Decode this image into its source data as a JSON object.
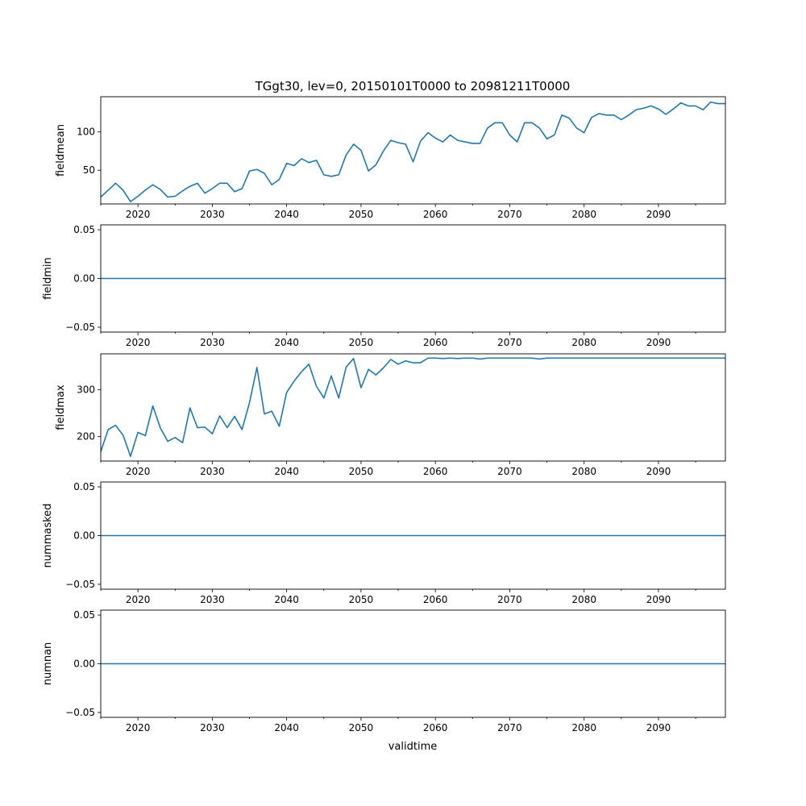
{
  "figure": {
    "title": "TGgt30, lev=0, 20150101T0000 to 20981211T0000",
    "xlabel": "validtime",
    "line_color": "#1f77b4"
  },
  "chart_data": [
    {
      "type": "line",
      "ylabel": "fieldmean",
      "xlim": [
        2015,
        2099
      ],
      "ylim": [
        6,
        146
      ],
      "xticks": [
        2020,
        2030,
        2040,
        2050,
        2060,
        2070,
        2080,
        2090
      ],
      "xtick_labels": [
        "2020",
        "2030",
        "2040",
        "2050",
        "2060",
        "2070",
        "2080",
        "2090"
      ],
      "yticks": [
        50,
        100
      ],
      "ytick_labels": [
        "50",
        "100"
      ],
      "series": [
        {
          "name": "fieldmean",
          "x": [
            2015,
            2016,
            2017,
            2018,
            2019,
            2020,
            2021,
            2022,
            2023,
            2024,
            2025,
            2026,
            2027,
            2028,
            2029,
            2030,
            2031,
            2032,
            2033,
            2034,
            2035,
            2036,
            2037,
            2038,
            2039,
            2040,
            2041,
            2042,
            2043,
            2044,
            2045,
            2046,
            2047,
            2048,
            2049,
            2050,
            2051,
            2052,
            2053,
            2054,
            2055,
            2056,
            2057,
            2058,
            2059,
            2060,
            2061,
            2062,
            2063,
            2064,
            2065,
            2066,
            2067,
            2068,
            2069,
            2070,
            2071,
            2072,
            2073,
            2074,
            2075,
            2076,
            2077,
            2078,
            2079,
            2080,
            2081,
            2082,
            2083,
            2084,
            2085,
            2086,
            2087,
            2088,
            2089,
            2090,
            2091,
            2092,
            2093,
            2094,
            2095,
            2096,
            2097,
            2098,
            2099
          ],
          "values": [
            15,
            24,
            33,
            24,
            9,
            16,
            24,
            31,
            25,
            15,
            16,
            23,
            29,
            33,
            20,
            26,
            33,
            33,
            22,
            26,
            49,
            51,
            46,
            31,
            38,
            59,
            56,
            65,
            60,
            63,
            44,
            42,
            44,
            70,
            84,
            76,
            49,
            57,
            75,
            89,
            86,
            84,
            61,
            88,
            99,
            92,
            87,
            96,
            89,
            87,
            85,
            85,
            105,
            112,
            112,
            96,
            87,
            112,
            112,
            105,
            91,
            96,
            122,
            118,
            105,
            99,
            119,
            124,
            122,
            122,
            116,
            122,
            129,
            131,
            134,
            130,
            123,
            130,
            138,
            134,
            134,
            129,
            139,
            137,
            137
          ]
        }
      ]
    },
    {
      "type": "line",
      "ylabel": "fieldmin",
      "xlim": [
        2015,
        2099
      ],
      "ylim": [
        -0.055,
        0.055
      ],
      "xticks": [
        2020,
        2030,
        2040,
        2050,
        2060,
        2070,
        2080,
        2090
      ],
      "xtick_labels": [
        "2020",
        "2030",
        "2040",
        "2050",
        "2060",
        "2070",
        "2080",
        "2090"
      ],
      "yticks": [
        -0.05,
        0.0,
        0.05
      ],
      "ytick_labels": [
        "−0.05",
        "0.00",
        "0.05"
      ],
      "series": [
        {
          "name": "fieldmin",
          "x": [
            2015,
            2099
          ],
          "values": [
            0,
            0
          ]
        }
      ]
    },
    {
      "type": "line",
      "ylabel": "fieldmax",
      "xlim": [
        2015,
        2099
      ],
      "ylim": [
        148,
        376
      ],
      "xticks": [
        2020,
        2030,
        2040,
        2050,
        2060,
        2070,
        2080,
        2090
      ],
      "xtick_labels": [
        "2020",
        "2030",
        "2040",
        "2050",
        "2060",
        "2070",
        "2080",
        "2090"
      ],
      "yticks": [
        200,
        300
      ],
      "ytick_labels": [
        "200",
        "300"
      ],
      "series": [
        {
          "name": "fieldmax",
          "x": [
            2015,
            2016,
            2017,
            2018,
            2019,
            2020,
            2021,
            2022,
            2023,
            2024,
            2025,
            2026,
            2027,
            2028,
            2029,
            2030,
            2031,
            2032,
            2033,
            2034,
            2035,
            2036,
            2037,
            2038,
            2039,
            2040,
            2041,
            2042,
            2043,
            2044,
            2045,
            2046,
            2047,
            2048,
            2049,
            2050,
            2051,
            2052,
            2053,
            2054,
            2055,
            2056,
            2057,
            2058,
            2059,
            2060,
            2061,
            2062,
            2063,
            2064,
            2065,
            2066,
            2067,
            2068,
            2069,
            2070,
            2071,
            2072,
            2073,
            2074,
            2075,
            2076,
            2077,
            2078,
            2079,
            2080,
            2081,
            2082,
            2083,
            2084,
            2085,
            2086,
            2087,
            2088,
            2089,
            2090,
            2091,
            2092,
            2093,
            2094,
            2095,
            2096,
            2097,
            2098,
            2099
          ],
          "values": [
            168,
            215,
            224,
            203,
            158,
            209,
            202,
            265,
            219,
            190,
            198,
            187,
            261,
            219,
            220,
            206,
            244,
            219,
            243,
            215,
            272,
            347,
            248,
            254,
            222,
            294,
            318,
            338,
            354,
            307,
            282,
            329,
            282,
            348,
            366,
            304,
            343,
            331,
            346,
            364,
            354,
            361,
            357,
            357,
            367,
            367,
            366,
            367,
            366,
            367,
            367,
            365,
            367,
            367,
            367,
            367,
            367,
            367,
            367,
            365,
            367,
            367,
            367,
            367,
            367,
            367,
            367,
            367,
            367,
            367,
            367,
            367,
            367,
            367,
            367,
            367,
            367,
            367,
            367,
            367,
            367,
            367,
            367,
            367,
            367
          ]
        }
      ]
    },
    {
      "type": "line",
      "ylabel": "nummasked",
      "xlim": [
        2015,
        2099
      ],
      "ylim": [
        -0.055,
        0.055
      ],
      "xticks": [
        2020,
        2030,
        2040,
        2050,
        2060,
        2070,
        2080,
        2090
      ],
      "xtick_labels": [
        "2020",
        "2030",
        "2040",
        "2050",
        "2060",
        "2070",
        "2080",
        "2090"
      ],
      "yticks": [
        -0.05,
        0.0,
        0.05
      ],
      "ytick_labels": [
        "−0.05",
        "0.00",
        "0.05"
      ],
      "series": [
        {
          "name": "nummasked",
          "x": [
            2015,
            2099
          ],
          "values": [
            0,
            0
          ]
        }
      ]
    },
    {
      "type": "line",
      "ylabel": "numnan",
      "xlim": [
        2015,
        2099
      ],
      "ylim": [
        -0.055,
        0.055
      ],
      "xticks": [
        2020,
        2030,
        2040,
        2050,
        2060,
        2070,
        2080,
        2090
      ],
      "xtick_labels": [
        "2020",
        "2030",
        "2040",
        "2050",
        "2060",
        "2070",
        "2080",
        "2090"
      ],
      "yticks": [
        -0.05,
        0.0,
        0.05
      ],
      "ytick_labels": [
        "−0.05",
        "0.00",
        "0.05"
      ],
      "series": [
        {
          "name": "numnan",
          "x": [
            2015,
            2099
          ],
          "values": [
            0,
            0
          ]
        }
      ]
    }
  ]
}
